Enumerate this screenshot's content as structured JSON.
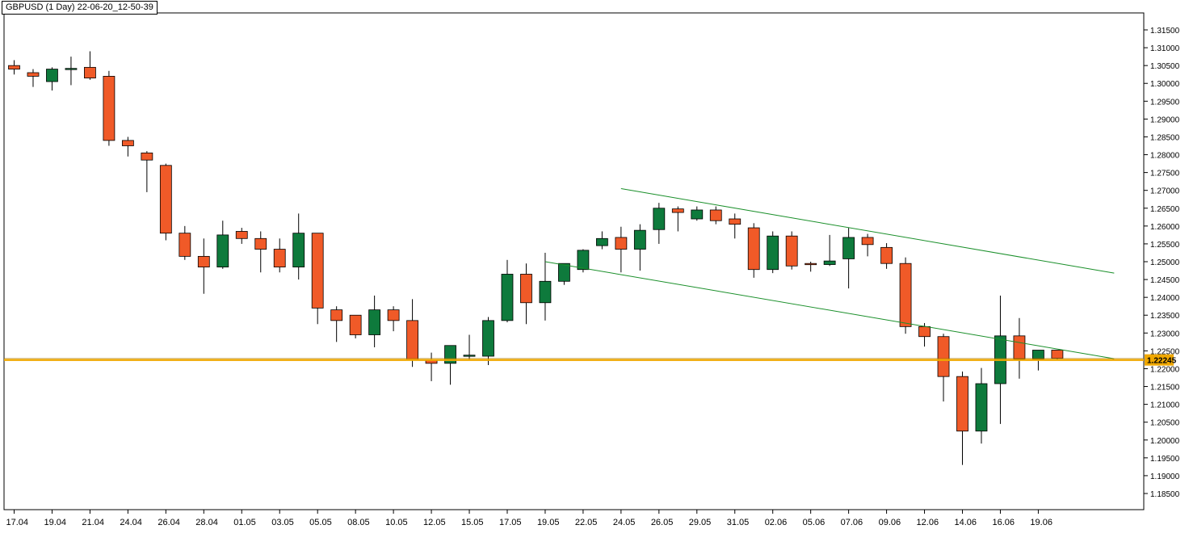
{
  "header": {
    "title": "GBPUSD (1 Day) 22-06-20_12-50-39"
  },
  "colors": {
    "bull": "#0e7a3c",
    "bear": "#f05a28",
    "channel": "#1a8f2a",
    "price_line": "#f0a800",
    "price_tag_bg": "#f0a800"
  },
  "chart_data": {
    "type": "candlestick",
    "title": "GBPUSD (1 Day) 22-06-20_12-50-39",
    "ylim": [
      1.18,
      1.318
    ],
    "y_ticks": [
      "1.31500",
      "1.31000",
      "1.30500",
      "1.30000",
      "1.29500",
      "1.29000",
      "1.28500",
      "1.28000",
      "1.27500",
      "1.27000",
      "1.26500",
      "1.26000",
      "1.25500",
      "1.25000",
      "1.24500",
      "1.24000",
      "1.23500",
      "1.23000",
      "1.22500",
      "1.22000",
      "1.21500",
      "1.21000",
      "1.20500",
      "1.20000",
      "1.19500",
      "1.19000",
      "1.18500"
    ],
    "x_ticks": [
      {
        "label": "17.04",
        "index": 0
      },
      {
        "label": "19.04",
        "index": 2
      },
      {
        "label": "21.04",
        "index": 4
      },
      {
        "label": "24.04",
        "index": 6
      },
      {
        "label": "26.04",
        "index": 8
      },
      {
        "label": "28.04",
        "index": 10
      },
      {
        "label": "01.05",
        "index": 12
      },
      {
        "label": "03.05",
        "index": 14
      },
      {
        "label": "05.05",
        "index": 16
      },
      {
        "label": "08.05",
        "index": 18
      },
      {
        "label": "10.05",
        "index": 20
      },
      {
        "label": "12.05",
        "index": 22
      },
      {
        "label": "15.05",
        "index": 24
      },
      {
        "label": "17.05",
        "index": 26
      },
      {
        "label": "19.05",
        "index": 28
      },
      {
        "label": "22.05",
        "index": 30
      },
      {
        "label": "24.05",
        "index": 32
      },
      {
        "label": "26.05",
        "index": 34
      },
      {
        "label": "29.05",
        "index": 36
      },
      {
        "label": "31.05",
        "index": 38
      },
      {
        "label": "02.06",
        "index": 40
      },
      {
        "label": "05.06",
        "index": 42
      },
      {
        "label": "07.06",
        "index": 44
      },
      {
        "label": "09.06",
        "index": 46
      },
      {
        "label": "12.06",
        "index": 48
      },
      {
        "label": "14.06",
        "index": 50
      },
      {
        "label": "16.06",
        "index": 52
      },
      {
        "label": "19.06",
        "index": 54
      }
    ],
    "current_price": 1.22245,
    "current_price_label": "1.22245",
    "candles": [
      {
        "o": 1.305,
        "h": 1.3065,
        "l": 1.3025,
        "c": 1.304
      },
      {
        "o": 1.303,
        "h": 1.304,
        "l": 1.299,
        "c": 1.302
      },
      {
        "o": 1.3005,
        "h": 1.3045,
        "l": 1.298,
        "c": 1.304
      },
      {
        "o": 1.304,
        "h": 1.3075,
        "l": 1.2995,
        "c": 1.3042
      },
      {
        "o": 1.3045,
        "h": 1.309,
        "l": 1.301,
        "c": 1.3015
      },
      {
        "o": 1.302,
        "h": 1.3035,
        "l": 1.2825,
        "c": 1.284
      },
      {
        "o": 1.284,
        "h": 1.285,
        "l": 1.2795,
        "c": 1.2825
      },
      {
        "o": 1.2805,
        "h": 1.281,
        "l": 1.2695,
        "c": 1.2785
      },
      {
        "o": 1.277,
        "h": 1.2775,
        "l": 1.256,
        "c": 1.258
      },
      {
        "o": 1.258,
        "h": 1.26,
        "l": 1.2505,
        "c": 1.2515
      },
      {
        "o": 1.2515,
        "h": 1.2565,
        "l": 1.241,
        "c": 1.2485
      },
      {
        "o": 1.2485,
        "h": 1.2615,
        "l": 1.248,
        "c": 1.2575
      },
      {
        "o": 1.2585,
        "h": 1.2595,
        "l": 1.255,
        "c": 1.2565
      },
      {
        "o": 1.2565,
        "h": 1.2585,
        "l": 1.247,
        "c": 1.2535
      },
      {
        "o": 1.2535,
        "h": 1.2565,
        "l": 1.247,
        "c": 1.2485
      },
      {
        "o": 1.2485,
        "h": 1.2635,
        "l": 1.245,
        "c": 1.258
      },
      {
        "o": 1.258,
        "h": 1.258,
        "l": 1.2325,
        "c": 1.237
      },
      {
        "o": 1.2365,
        "h": 1.2375,
        "l": 1.2275,
        "c": 1.2335
      },
      {
        "o": 1.235,
        "h": 1.235,
        "l": 1.2285,
        "c": 1.2295
      },
      {
        "o": 1.2295,
        "h": 1.2405,
        "l": 1.226,
        "c": 1.2365
      },
      {
        "o": 1.2365,
        "h": 1.2375,
        "l": 1.2305,
        "c": 1.2335
      },
      {
        "o": 1.2335,
        "h": 1.2395,
        "l": 1.2205,
        "c": 1.2225
      },
      {
        "o": 1.2225,
        "h": 1.2245,
        "l": 1.2165,
        "c": 1.2215
      },
      {
        "o": 1.2215,
        "h": 1.2265,
        "l": 1.2155,
        "c": 1.2265
      },
      {
        "o": 1.2235,
        "h": 1.2295,
        "l": 1.2225,
        "c": 1.2238
      },
      {
        "o": 1.2235,
        "h": 1.2345,
        "l": 1.221,
        "c": 1.2335
      },
      {
        "o": 1.2335,
        "h": 1.2505,
        "l": 1.233,
        "c": 1.2465
      },
      {
        "o": 1.2465,
        "h": 1.2495,
        "l": 1.2325,
        "c": 1.2385
      },
      {
        "o": 1.2385,
        "h": 1.2525,
        "l": 1.2335,
        "c": 1.2445
      },
      {
        "o": 1.2445,
        "h": 1.2495,
        "l": 1.2435,
        "c": 1.2495
      },
      {
        "o": 1.2478,
        "h": 1.2535,
        "l": 1.247,
        "c": 1.2532
      },
      {
        "o": 1.2545,
        "h": 1.2585,
        "l": 1.2535,
        "c": 1.2565
      },
      {
        "o": 1.2568,
        "h": 1.2598,
        "l": 1.247,
        "c": 1.2535
      },
      {
        "o": 1.2535,
        "h": 1.2605,
        "l": 1.2475,
        "c": 1.2588
      },
      {
        "o": 1.259,
        "h": 1.2665,
        "l": 1.255,
        "c": 1.265
      },
      {
        "o": 1.2648,
        "h": 1.2655,
        "l": 1.2585,
        "c": 1.2638
      },
      {
        "o": 1.262,
        "h": 1.2655,
        "l": 1.2615,
        "c": 1.2645
      },
      {
        "o": 1.2645,
        "h": 1.2655,
        "l": 1.2605,
        "c": 1.2615
      },
      {
        "o": 1.262,
        "h": 1.2635,
        "l": 1.2565,
        "c": 1.2605
      },
      {
        "o": 1.2595,
        "h": 1.2608,
        "l": 1.2455,
        "c": 1.2478
      },
      {
        "o": 1.2478,
        "h": 1.2585,
        "l": 1.2468,
        "c": 1.2572
      },
      {
        "o": 1.2572,
        "h": 1.2585,
        "l": 1.2478,
        "c": 1.2488
      },
      {
        "o": 1.2495,
        "h": 1.25,
        "l": 1.2472,
        "c": 1.2493
      },
      {
        "o": 1.2492,
        "h": 1.2575,
        "l": 1.2488,
        "c": 1.2502
      },
      {
        "o": 1.2508,
        "h": 1.2595,
        "l": 1.2425,
        "c": 1.2568
      },
      {
        "o": 1.2568,
        "h": 1.2578,
        "l": 1.2515,
        "c": 1.2548
      },
      {
        "o": 1.254,
        "h": 1.2552,
        "l": 1.248,
        "c": 1.2495
      },
      {
        "o": 1.2495,
        "h": 1.2512,
        "l": 1.2298,
        "c": 1.2318
      },
      {
        "o": 1.2318,
        "h": 1.2328,
        "l": 1.2262,
        "c": 1.229
      },
      {
        "o": 1.229,
        "h": 1.2298,
        "l": 1.2108,
        "c": 1.2178
      },
      {
        "o": 1.2178,
        "h": 1.2192,
        "l": 1.193,
        "c": 1.2025
      },
      {
        "o": 1.2025,
        "h": 1.2202,
        "l": 1.199,
        "c": 1.2158
      },
      {
        "o": 1.2158,
        "h": 1.2405,
        "l": 1.2045,
        "c": 1.2292
      },
      {
        "o": 1.2292,
        "h": 1.2342,
        "l": 1.2172,
        "c": 1.2228
      },
      {
        "o": 1.2228,
        "h": 1.2252,
        "l": 1.2195,
        "c": 1.2252
      },
      {
        "o": 1.2252,
        "h": 1.2252,
        "l": 1.2226,
        "c": 1.2229
      }
    ],
    "channel_lines": [
      {
        "from": {
          "index": 32,
          "price": 1.2705
        },
        "to": {
          "index": 58,
          "price": 1.2468
        }
      },
      {
        "from": {
          "index": 28,
          "price": 1.25
        },
        "to": {
          "index": 58,
          "price": 1.2228
        }
      }
    ]
  }
}
